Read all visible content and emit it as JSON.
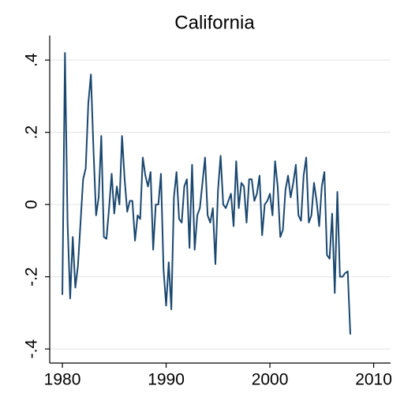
{
  "chart_data": {
    "type": "line",
    "title": "California",
    "x": [
      1980.0,
      1980.25,
      1980.5,
      1980.75,
      1981.0,
      1981.25,
      1981.5,
      1981.75,
      1982.0,
      1982.25,
      1982.5,
      1982.75,
      1983.0,
      1983.25,
      1983.5,
      1983.75,
      1984.0,
      1984.25,
      1984.5,
      1984.75,
      1985.0,
      1985.25,
      1985.5,
      1985.75,
      1986.0,
      1986.25,
      1986.5,
      1986.75,
      1987.0,
      1987.25,
      1987.5,
      1987.75,
      1988.0,
      1988.25,
      1988.5,
      1988.75,
      1989.0,
      1989.25,
      1989.5,
      1989.75,
      1990.0,
      1990.25,
      1990.5,
      1990.75,
      1991.0,
      1991.25,
      1991.5,
      1991.75,
      1992.0,
      1992.25,
      1992.5,
      1992.75,
      1993.0,
      1993.25,
      1993.5,
      1993.75,
      1994.0,
      1994.25,
      1994.5,
      1994.75,
      1995.0,
      1995.25,
      1995.5,
      1995.75,
      1996.0,
      1996.25,
      1996.5,
      1996.75,
      1997.0,
      1997.25,
      1997.5,
      1997.75,
      1998.0,
      1998.25,
      1998.5,
      1998.75,
      1999.0,
      1999.25,
      1999.5,
      1999.75,
      2000.0,
      2000.25,
      2000.5,
      2000.75,
      2001.0,
      2001.25,
      2001.5,
      2001.75,
      2002.0,
      2002.25,
      2002.5,
      2002.75,
      2003.0,
      2003.25,
      2003.5,
      2003.75,
      2004.0,
      2004.25,
      2004.5,
      2004.75,
      2005.0,
      2005.25,
      2005.5,
      2005.75,
      2006.0,
      2006.25,
      2006.5,
      2006.75,
      2007.0,
      2007.25,
      2007.5,
      2007.75
    ],
    "series": [
      {
        "color": "#1a476f",
        "values": [
          -0.25,
          0.42,
          -0.05,
          -0.26,
          -0.09,
          -0.23,
          -0.17,
          -0.05,
          0.07,
          0.1,
          0.28,
          0.36,
          0.15,
          -0.03,
          0.02,
          0.19,
          -0.09,
          -0.095,
          -0.01,
          0.085,
          -0.025,
          0.05,
          0.0,
          0.19,
          0.07,
          -0.02,
          0.01,
          0.01,
          -0.1,
          -0.03,
          -0.04,
          0.13,
          0.08,
          0.05,
          0.09,
          -0.125,
          0.0,
          0.0,
          0.085,
          -0.18,
          -0.28,
          -0.16,
          -0.29,
          0.02,
          0.09,
          -0.04,
          -0.05,
          0.05,
          0.07,
          -0.12,
          0.11,
          -0.125,
          -0.03,
          -0.01,
          0.06,
          0.13,
          -0.03,
          -0.05,
          -0.01,
          -0.165,
          0.04,
          0.135,
          0.0,
          -0.01,
          0.01,
          0.03,
          -0.06,
          0.12,
          -0.01,
          0.06,
          0.05,
          -0.05,
          0.07,
          0.07,
          0.01,
          0.03,
          0.08,
          -0.085,
          0.0,
          0.01,
          0.03,
          -0.03,
          0.12,
          0.05,
          -0.09,
          -0.07,
          0.04,
          0.08,
          0.02,
          0.06,
          0.11,
          -0.03,
          -0.045,
          0.08,
          0.13,
          -0.05,
          -0.03,
          0.06,
          0.01,
          -0.06,
          0.05,
          0.09,
          -0.14,
          -0.15,
          -0.025,
          -0.245,
          0.035,
          -0.2,
          -0.2,
          -0.19,
          -0.185,
          -0.36
        ]
      }
    ],
    "xlim": [
      1978.78,
      2011.63
    ],
    "xticks": [
      1980,
      1990,
      2000,
      2010
    ],
    "ylim": [
      -0.439,
      0.468
    ],
    "yticks": [
      {
        "value": -0.4,
        "label": "-.4"
      },
      {
        "value": -0.2,
        "label": "-.2"
      },
      0,
      {
        "value": 0.2,
        "label": ".2"
      },
      {
        "value": 0.4,
        "label": ".4"
      }
    ],
    "grid": true
  }
}
